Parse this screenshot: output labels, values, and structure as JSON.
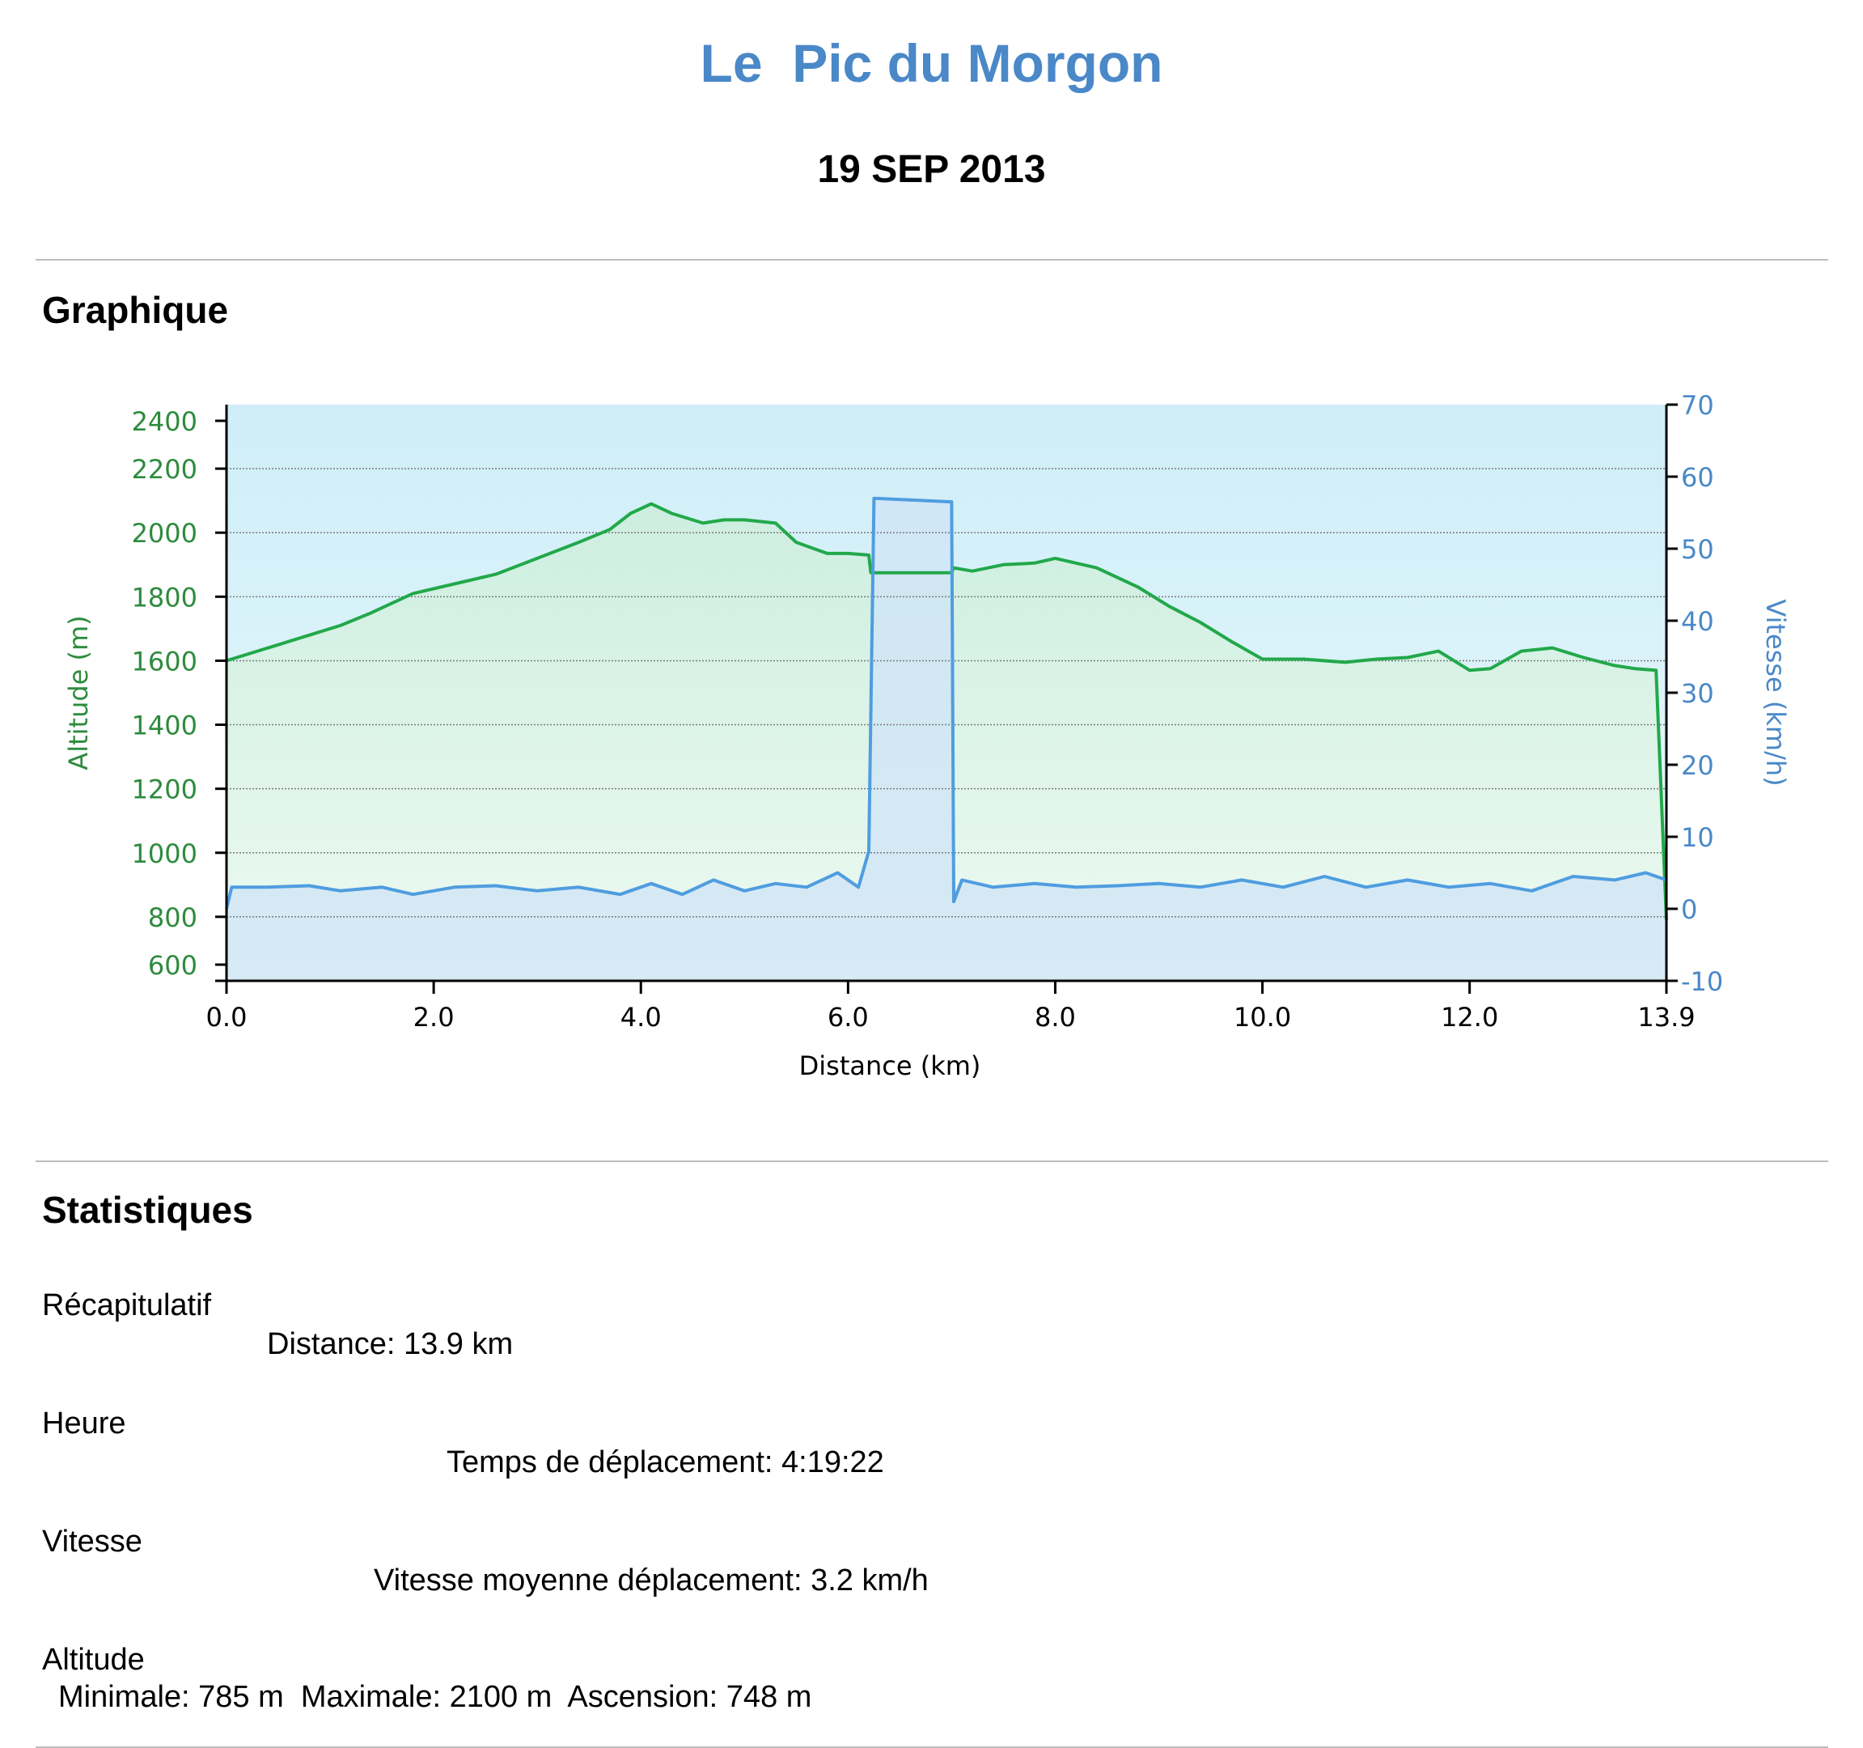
{
  "page": {
    "title": "Le  Pic du Morgon",
    "date": "19 SEP 2013"
  },
  "sections": {
    "graph_heading": "Graphique",
    "stats_heading": "Statistiques"
  },
  "stats": {
    "recap_label": "Récapitulatif",
    "distance": "Distance: 13.9 km",
    "time_label": "Heure",
    "moving_time": "Temps de déplacement: 4:19:22",
    "speed_label": "Vitesse",
    "avg_speed": "Vitesse moyenne déplacement: 3.2 km/h",
    "altitude_label": "Altitude",
    "altitude_values": "Minimale: 785 m  Maximale: 2100 m  Ascension: 748 m"
  },
  "colors": {
    "altitude": "#22a84a",
    "speed": "#4f9de0",
    "title": "#4a88c8",
    "altitude_axis_text": "#2e8b3e",
    "speed_axis_text": "#4a88c8"
  },
  "chart_data": {
    "type": "line",
    "xlabel": "Distance   (km)",
    "x_ticks": [
      "0.0",
      "2.0",
      "4.0",
      "6.0",
      "8.0",
      "10.0",
      "12.0",
      "13.9"
    ],
    "xlim": [
      0,
      13.9
    ],
    "y_left": {
      "label": "Altitude (m)",
      "ticks": [
        "2400",
        "2200",
        "2000",
        "1800",
        "1600",
        "1400",
        "1200",
        "1000",
        "800",
        "600"
      ],
      "range": [
        600,
        2400
      ]
    },
    "y_right": {
      "label": "Vitesse (km/h)",
      "ticks": [
        "70",
        "60",
        "50",
        "40",
        "30",
        "20",
        "10",
        "0",
        "-10"
      ],
      "range": [
        -10,
        70
      ]
    },
    "grid": true,
    "series": [
      {
        "name": "Altitude",
        "axis": "left",
        "x": [
          0.0,
          0.2,
          0.5,
          0.8,
          1.1,
          1.4,
          1.8,
          2.2,
          2.6,
          3.0,
          3.4,
          3.7,
          3.9,
          4.1,
          4.3,
          4.6,
          4.8,
          5.0,
          5.3,
          5.5,
          5.8,
          6.0,
          6.2,
          6.22,
          7.0,
          7.02,
          7.2,
          7.5,
          7.8,
          8.0,
          8.4,
          8.8,
          9.1,
          9.4,
          9.7,
          10.0,
          10.4,
          10.8,
          11.1,
          11.4,
          11.7,
          12.0,
          12.2,
          12.5,
          12.8,
          13.1,
          13.4,
          13.6,
          13.8,
          13.9
        ],
        "y": [
          1600,
          1620,
          1650,
          1680,
          1710,
          1750,
          1810,
          1840,
          1870,
          1920,
          1970,
          2010,
          2060,
          2090,
          2060,
          2030,
          2040,
          2040,
          2030,
          1970,
          1935,
          1935,
          1930,
          1875,
          1875,
          1890,
          1880,
          1900,
          1905,
          1920,
          1890,
          1830,
          1770,
          1720,
          1660,
          1605,
          1605,
          1595,
          1605,
          1610,
          1630,
          1570,
          1575,
          1630,
          1640,
          1610,
          1585,
          1575,
          1570,
          790
        ]
      },
      {
        "name": "Vitesse",
        "axis": "right",
        "x": [
          0.0,
          0.05,
          0.4,
          0.8,
          1.1,
          1.5,
          1.8,
          2.2,
          2.6,
          3.0,
          3.4,
          3.8,
          4.1,
          4.4,
          4.7,
          5.0,
          5.3,
          5.6,
          5.9,
          6.1,
          6.2,
          6.25,
          7.0,
          7.02,
          7.1,
          7.4,
          7.8,
          8.2,
          8.6,
          9.0,
          9.4,
          9.8,
          10.2,
          10.6,
          11.0,
          11.4,
          11.8,
          12.2,
          12.6,
          13.0,
          13.4,
          13.7,
          13.9
        ],
        "y": [
          0,
          3,
          3,
          3.2,
          2.5,
          3,
          2,
          3,
          3.2,
          2.5,
          3,
          2,
          3.5,
          2,
          4,
          2.5,
          3.5,
          3,
          5,
          3,
          8,
          57,
          56.5,
          1,
          4,
          3,
          3.5,
          3,
          3.2,
          3.5,
          3,
          4,
          3,
          4.5,
          3,
          4,
          3,
          3.5,
          2.5,
          4.5,
          4,
          5,
          4
        ]
      }
    ]
  }
}
